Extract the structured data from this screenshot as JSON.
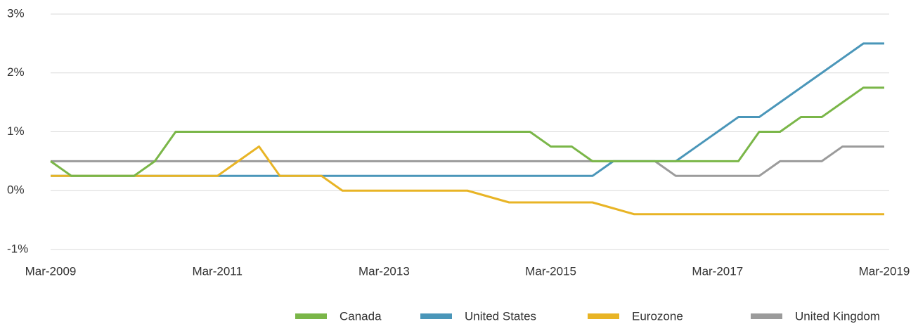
{
  "chart_data": {
    "type": "line",
    "categories": [
      "Mar-2009",
      null,
      null,
      null,
      null,
      null,
      null,
      null,
      "Mar-2011",
      null,
      null,
      null,
      null,
      null,
      null,
      null,
      "Mar-2013",
      null,
      null,
      null,
      null,
      null,
      null,
      null,
      "Mar-2015",
      null,
      null,
      null,
      null,
      null,
      null,
      null,
      "Mar-2017",
      null,
      null,
      null,
      null,
      null,
      null,
      null,
      "Mar-2019"
    ],
    "series": [
      {
        "name": "Canada",
        "color": "#7ab648",
        "values": [
          0.5,
          0.25,
          0.25,
          0.25,
          0.25,
          0.5,
          1,
          1,
          1,
          1,
          1,
          1,
          1,
          1,
          1,
          1,
          1,
          1,
          1,
          1,
          1,
          1,
          1,
          1,
          0.75,
          0.75,
          0.5,
          0.5,
          0.5,
          0.5,
          0.5,
          0.5,
          0.5,
          0.5,
          1,
          1,
          1.25,
          1.25,
          1.5,
          1.75,
          1.75
        ]
      },
      {
        "name": "United States",
        "color": "#4a96b9",
        "values": [
          0.25,
          0.25,
          0.25,
          0.25,
          0.25,
          0.25,
          0.25,
          0.25,
          0.25,
          0.25,
          0.25,
          0.25,
          0.25,
          0.25,
          0.25,
          0.25,
          0.25,
          0.25,
          0.25,
          0.25,
          0.25,
          0.25,
          0.25,
          0.25,
          0.25,
          0.25,
          0.25,
          0.5,
          0.5,
          0.5,
          0.5,
          0.75,
          1,
          1.25,
          1.25,
          1.5,
          1.75,
          2,
          2.25,
          2.5,
          2.5
        ]
      },
      {
        "name": "Eurozone",
        "color": "#e8b425",
        "values": [
          0.25,
          0.25,
          0.25,
          0.25,
          0.25,
          0.25,
          0.25,
          0.25,
          0.25,
          0.5,
          0.75,
          0.25,
          0.25,
          0.25,
          0,
          0,
          0,
          0,
          0,
          0,
          0,
          -0.1,
          -0.2,
          -0.2,
          -0.2,
          -0.2,
          -0.2,
          -0.3,
          -0.4,
          -0.4,
          -0.4,
          -0.4,
          -0.4,
          -0.4,
          -0.4,
          -0.4,
          -0.4,
          -0.4,
          -0.4,
          -0.4,
          -0.4
        ]
      },
      {
        "name": "United Kingdom",
        "color": "#9b9b9b",
        "values": [
          0.5,
          0.5,
          0.5,
          0.5,
          0.5,
          0.5,
          0.5,
          0.5,
          0.5,
          0.5,
          0.5,
          0.5,
          0.5,
          0.5,
          0.5,
          0.5,
          0.5,
          0.5,
          0.5,
          0.5,
          0.5,
          0.5,
          0.5,
          0.5,
          0.5,
          0.5,
          0.5,
          0.5,
          0.5,
          0.5,
          0.25,
          0.25,
          0.25,
          0.25,
          0.25,
          0.5,
          0.5,
          0.5,
          0.75,
          0.75,
          0.75
        ]
      }
    ],
    "ylim": [
      -1,
      3
    ],
    "yticks": [
      {
        "value": -1,
        "label": "-1%"
      },
      {
        "value": 0,
        "label": "0%"
      },
      {
        "value": 1,
        "label": "1%"
      },
      {
        "value": 2,
        "label": "2%"
      },
      {
        "value": 3,
        "label": "3%"
      }
    ],
    "grid": true
  }
}
